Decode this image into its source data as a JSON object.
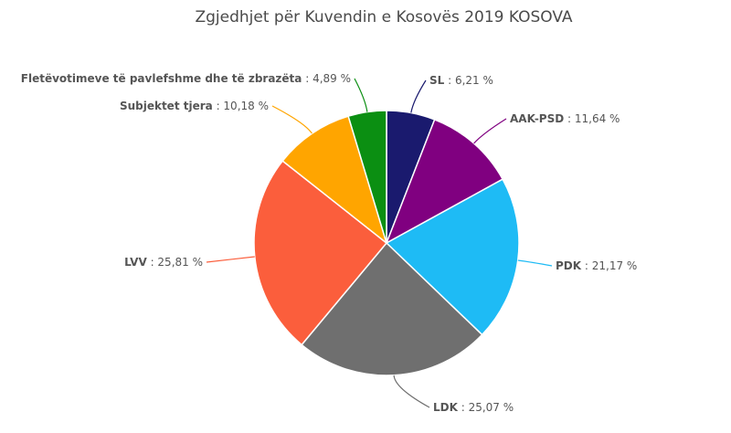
{
  "chart_data": {
    "type": "pie",
    "title": "Zgjedhjet për Kuvendin e Kosovës 2019 KOSOVA",
    "slices": [
      {
        "name": "SL",
        "value": 6.21,
        "value_label": "6,21 %",
        "color": "#1a1a6e"
      },
      {
        "name": "AAK-PSD",
        "value": 11.64,
        "value_label": "11,64 %",
        "color": "#800080"
      },
      {
        "name": "PDK",
        "value": 21.17,
        "value_label": "21,17 %",
        "color": "#1ebbf5"
      },
      {
        "name": "LDK",
        "value": 25.07,
        "value_label": "25,07 %",
        "color": "#6f6f6f"
      },
      {
        "name": "LVV",
        "value": 25.81,
        "value_label": "25,81 %",
        "color": "#fb5e3c"
      },
      {
        "name": "Subjektet tjera",
        "value": 10.18,
        "value_label": "10,18 %",
        "color": "#ffa500"
      },
      {
        "name": "Fletëvotimeve të pavlefshme dhe të zbrazëta",
        "value": 4.89,
        "value_label": "4,89 %",
        "color": "#0b8f12"
      }
    ]
  }
}
